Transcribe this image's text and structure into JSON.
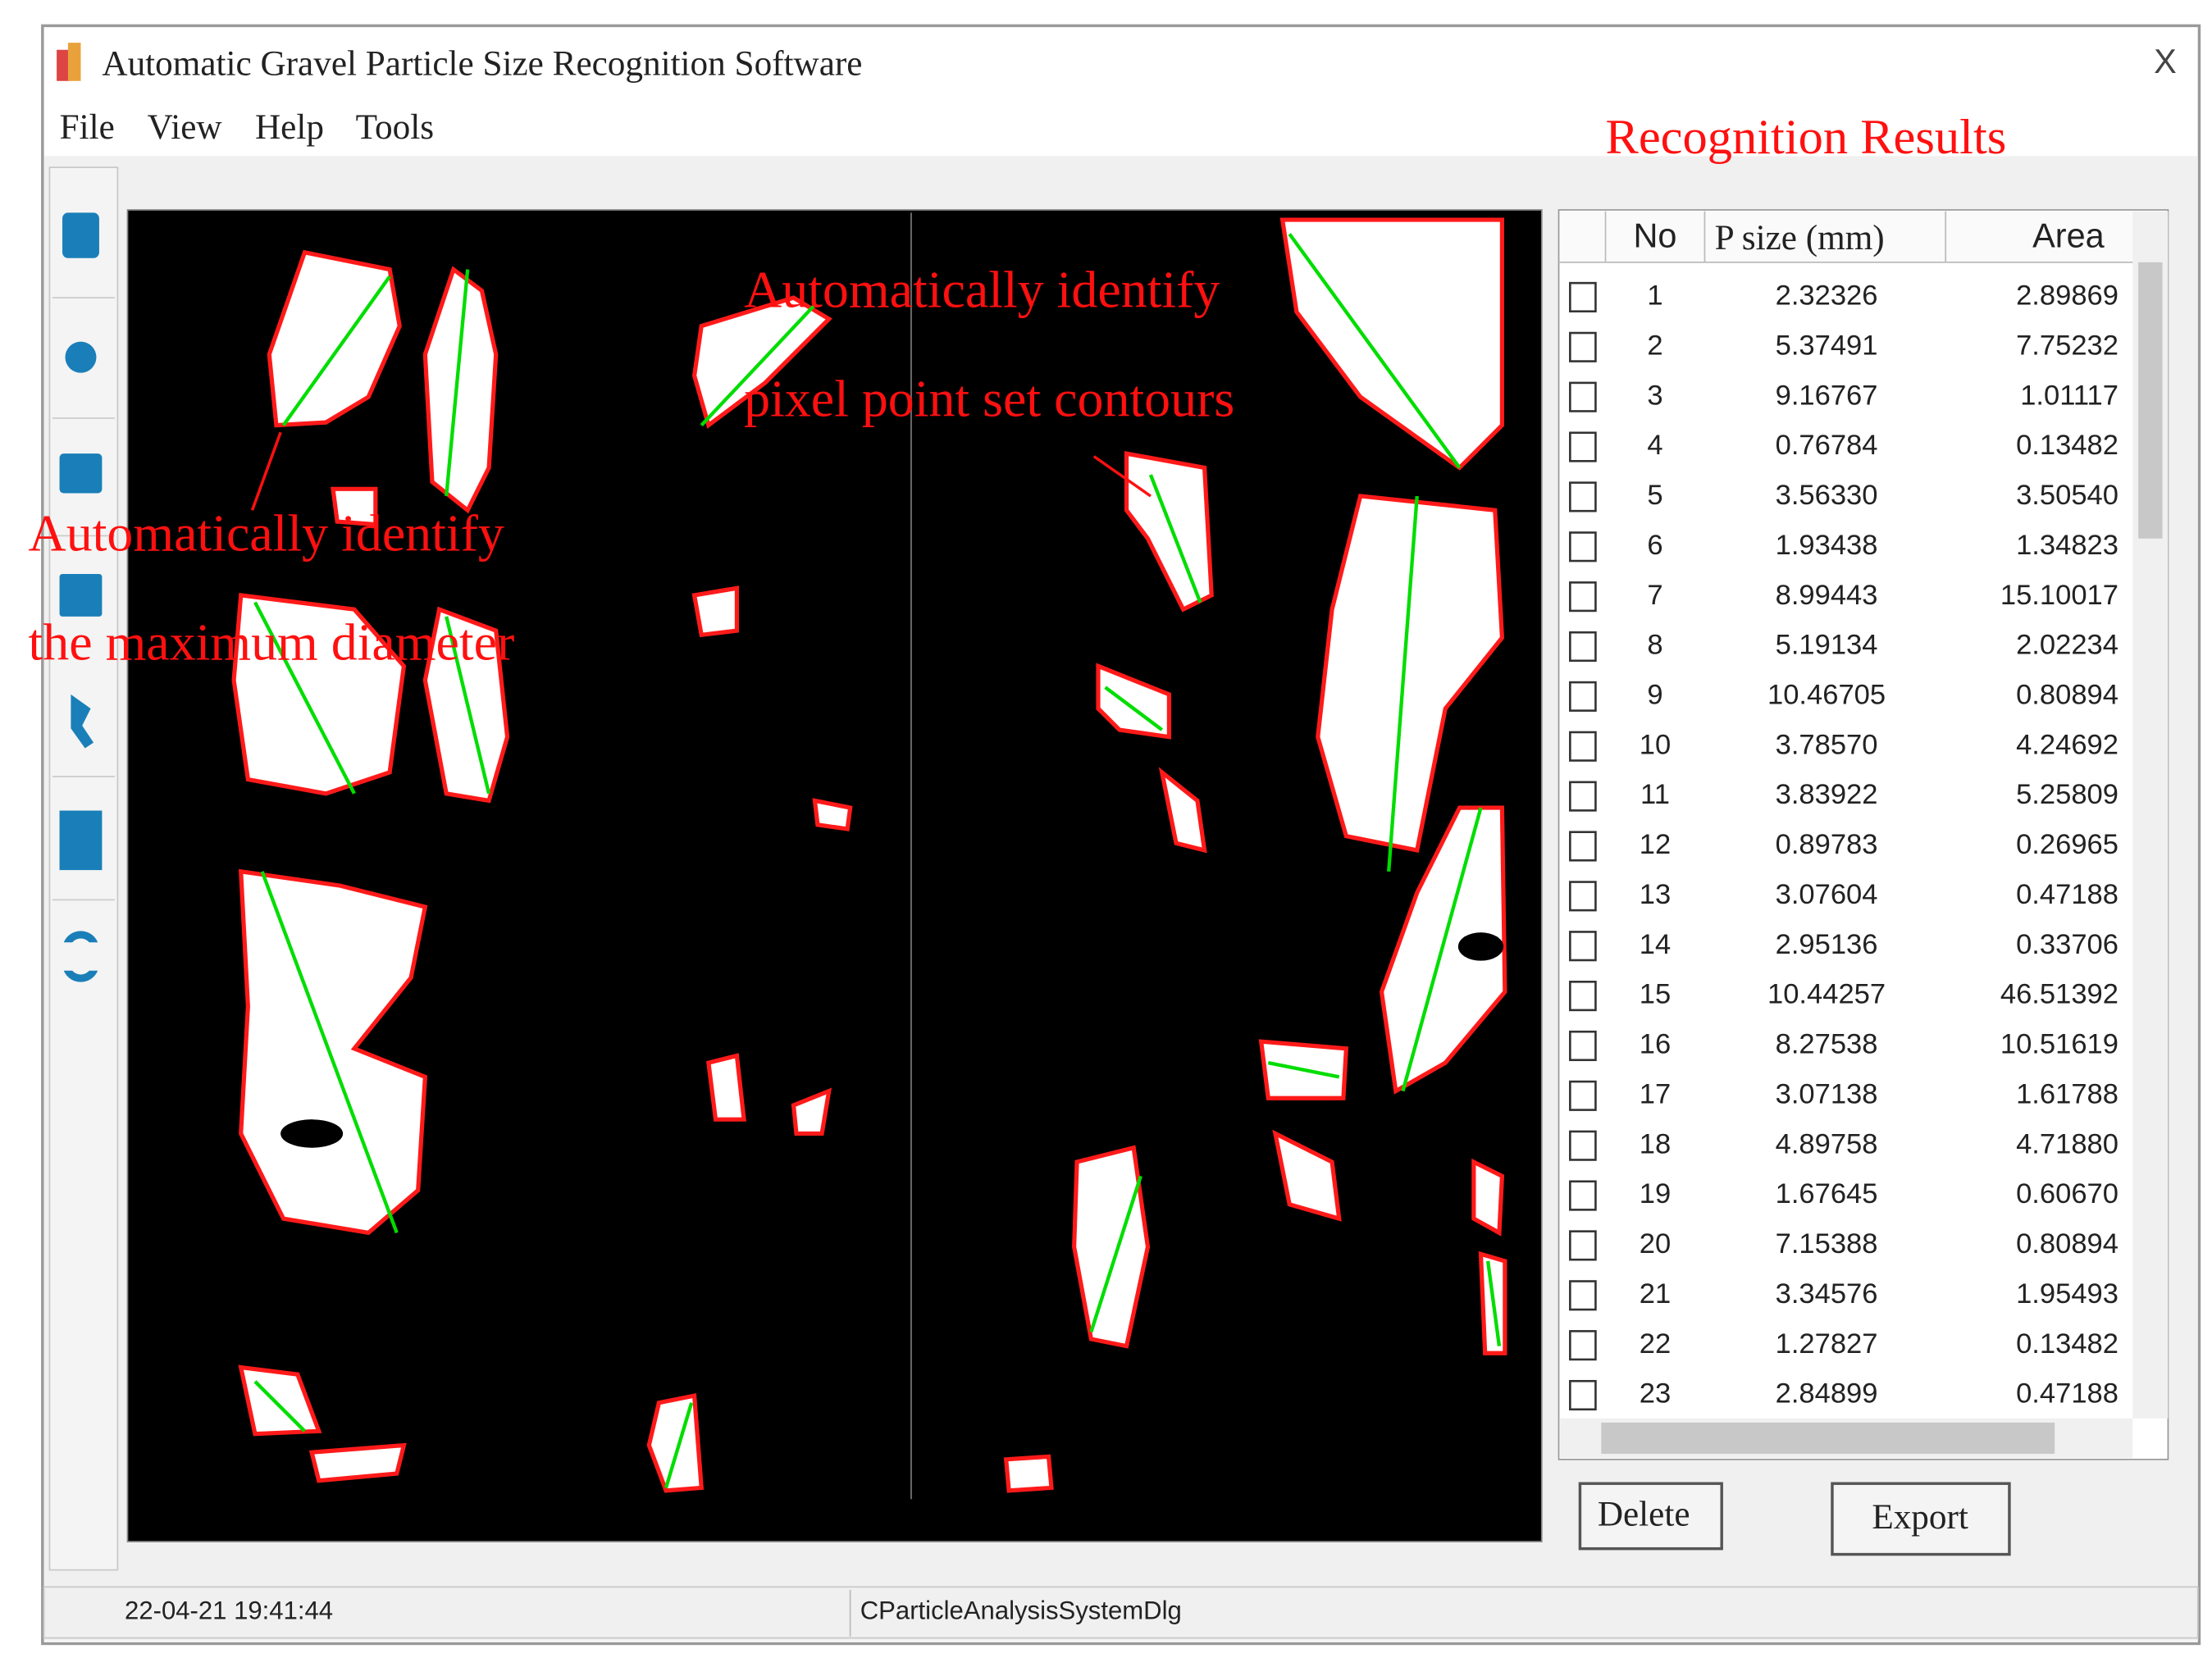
{
  "window": {
    "title": "Automatic Gravel Particle Size Recognition Software",
    "close": "X",
    "menu": [
      "File",
      "View",
      "Help",
      "Tools"
    ]
  },
  "results_heading": "Recognition Results",
  "annotations": [
    {
      "lines": [
        "Automatically identify",
        "pixel point set contours"
      ]
    },
    {
      "lines": [
        "Automatically identify",
        "the maximum diameter"
      ]
    }
  ],
  "table": {
    "columns": [
      "No",
      "P size (mm)",
      "Area"
    ],
    "rows": [
      [
        "1",
        "2.32326",
        "2.89869"
      ],
      [
        "2",
        "5.37491",
        "7.75232"
      ],
      [
        "3",
        "9.16767",
        "1.01117"
      ],
      [
        "4",
        "0.76784",
        "0.13482"
      ],
      [
        "5",
        "3.56330",
        "3.50540"
      ],
      [
        "6",
        "1.93438",
        "1.34823"
      ],
      [
        "7",
        "8.99443",
        "15.10017"
      ],
      [
        "8",
        "5.19134",
        "2.02234"
      ],
      [
        "9",
        "10.46705",
        "0.80894"
      ],
      [
        "10",
        "3.78570",
        "4.24692"
      ],
      [
        "11",
        "3.83922",
        "5.25809"
      ],
      [
        "12",
        "0.89783",
        "0.26965"
      ],
      [
        "13",
        "3.07604",
        "0.47188"
      ],
      [
        "14",
        "2.95136",
        "0.33706"
      ],
      [
        "15",
        "10.44257",
        "46.51392"
      ],
      [
        "16",
        "8.27538",
        "10.51619"
      ],
      [
        "17",
        "3.07138",
        "1.61788"
      ],
      [
        "18",
        "4.89758",
        "4.71880"
      ],
      [
        "19",
        "1.67645",
        "0.60670"
      ],
      [
        "20",
        "7.15388",
        "0.80894"
      ],
      [
        "21",
        "3.34576",
        "1.95493"
      ],
      [
        "22",
        "1.27827",
        "0.13482"
      ],
      [
        "23",
        "2.84899",
        "0.47188"
      ]
    ]
  },
  "buttons": [
    "Delete",
    "Export"
  ],
  "status_bar": [
    "22-04-21 19:41:44",
    "CParticleAnalysisSystemDlg"
  ]
}
